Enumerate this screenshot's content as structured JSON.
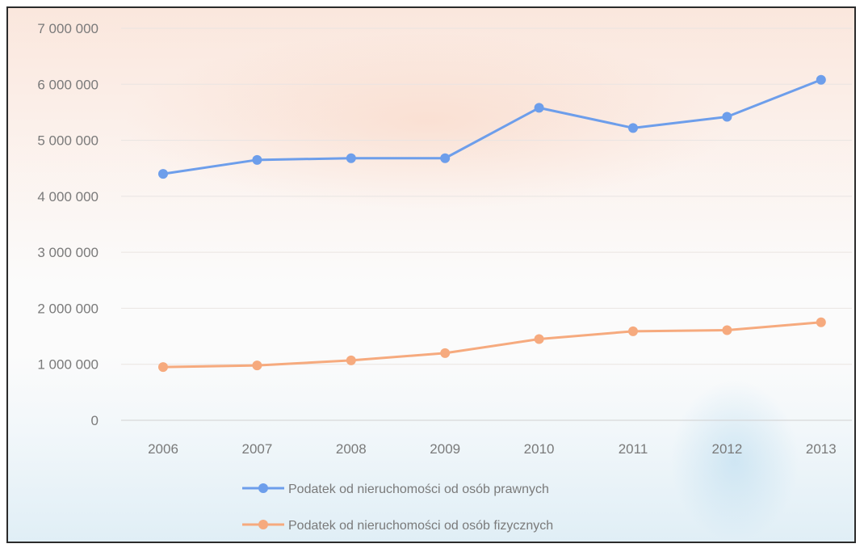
{
  "chart_data": {
    "type": "line",
    "title": "",
    "xlabel": "",
    "ylabel": "",
    "x": [
      "2006",
      "2007",
      "2008",
      "2009",
      "2010",
      "2011",
      "2012",
      "2013"
    ],
    "ylim": [
      0,
      7000000
    ],
    "yticks": [
      0,
      1000000,
      2000000,
      3000000,
      4000000,
      5000000,
      6000000,
      7000000
    ],
    "ytick_labels": [
      "0",
      "1 000 000",
      "2 000 000",
      "3 000 000",
      "4 000 000",
      "5 000 000",
      "6 000 000",
      "7 000 000"
    ],
    "grid": true,
    "legend_position": "bottom",
    "series": [
      {
        "name": "Podatek od nieruchomości od osób prawnych",
        "color": "#6d9eeb",
        "values": [
          4400000,
          4650000,
          4680000,
          4680000,
          5580000,
          5220000,
          5420000,
          6080000
        ]
      },
      {
        "name": "Podatek od nieruchomości od osób fizycznych",
        "color": "#f6aa7e",
        "values": [
          950000,
          980000,
          1070000,
          1200000,
          1450000,
          1590000,
          1610000,
          1750000
        ]
      }
    ]
  }
}
